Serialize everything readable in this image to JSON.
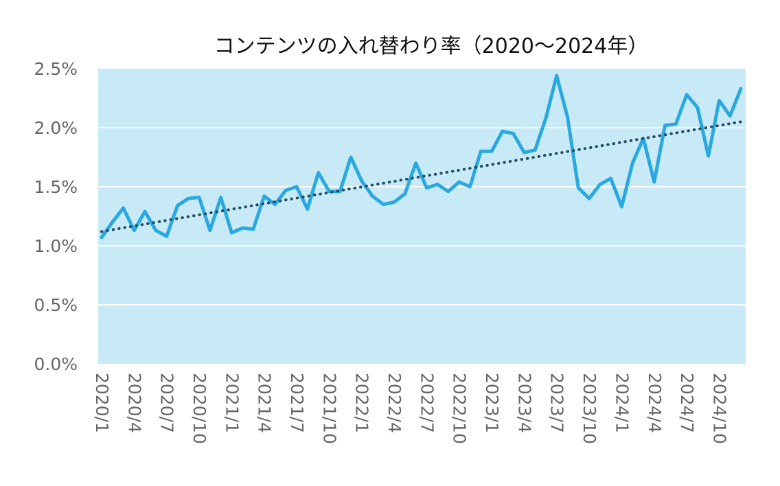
{
  "chart_data": {
    "type": "line",
    "title": "コンテンツの入れ替わり率（2020～2024年）",
    "xlabel": "",
    "ylabel": "",
    "ylim": [
      0,
      2.5
    ],
    "y_ticks": [
      "0.0%",
      "0.5%",
      "1.0%",
      "1.5%",
      "2.0%",
      "2.5%"
    ],
    "y_tick_values": [
      0,
      0.5,
      1.0,
      1.5,
      2.0,
      2.5
    ],
    "x_tick_labels": [
      "2020/1",
      "2020/4",
      "2020/7",
      "2020/10",
      "2021/1",
      "2021/4",
      "2021/7",
      "2021/10",
      "2022/1",
      "2022/4",
      "2022/7",
      "2022/10",
      "2023/1",
      "2023/4",
      "2023/7",
      "2023/10",
      "2024/1",
      "2024/4",
      "2024/7",
      "2024/10"
    ],
    "x_tick_months": [
      0,
      3,
      6,
      9,
      12,
      15,
      18,
      21,
      24,
      27,
      30,
      33,
      36,
      39,
      42,
      45,
      48,
      51,
      54,
      57
    ],
    "grid": true,
    "legend": "none",
    "series": [
      {
        "values": [
          1.07,
          1.2,
          1.32,
          1.13,
          1.29,
          1.13,
          1.08,
          1.34,
          1.4,
          1.41,
          1.13,
          1.41,
          1.11,
          1.15,
          1.14,
          1.42,
          1.35,
          1.47,
          1.5,
          1.31,
          1.62,
          1.46,
          1.46,
          1.75,
          1.55,
          1.42,
          1.35,
          1.37,
          1.44,
          1.7,
          1.49,
          1.52,
          1.46,
          1.54,
          1.5,
          1.8,
          1.8,
          1.97,
          1.95,
          1.79,
          1.81,
          2.08,
          2.44,
          2.09,
          1.49,
          1.4,
          1.52,
          1.57,
          1.33,
          1.7,
          1.91,
          1.54,
          2.02,
          2.03,
          2.28,
          2.17,
          1.76,
          2.23,
          2.1,
          2.33
        ],
        "color": "#2aa8e0"
      },
      {
        "type": "trendline",
        "values": [
          1.12,
          2.05
        ],
        "color": "#1f4e63"
      }
    ],
    "plot_background": "#c8eaf6",
    "grid_color": "#ffffff"
  }
}
